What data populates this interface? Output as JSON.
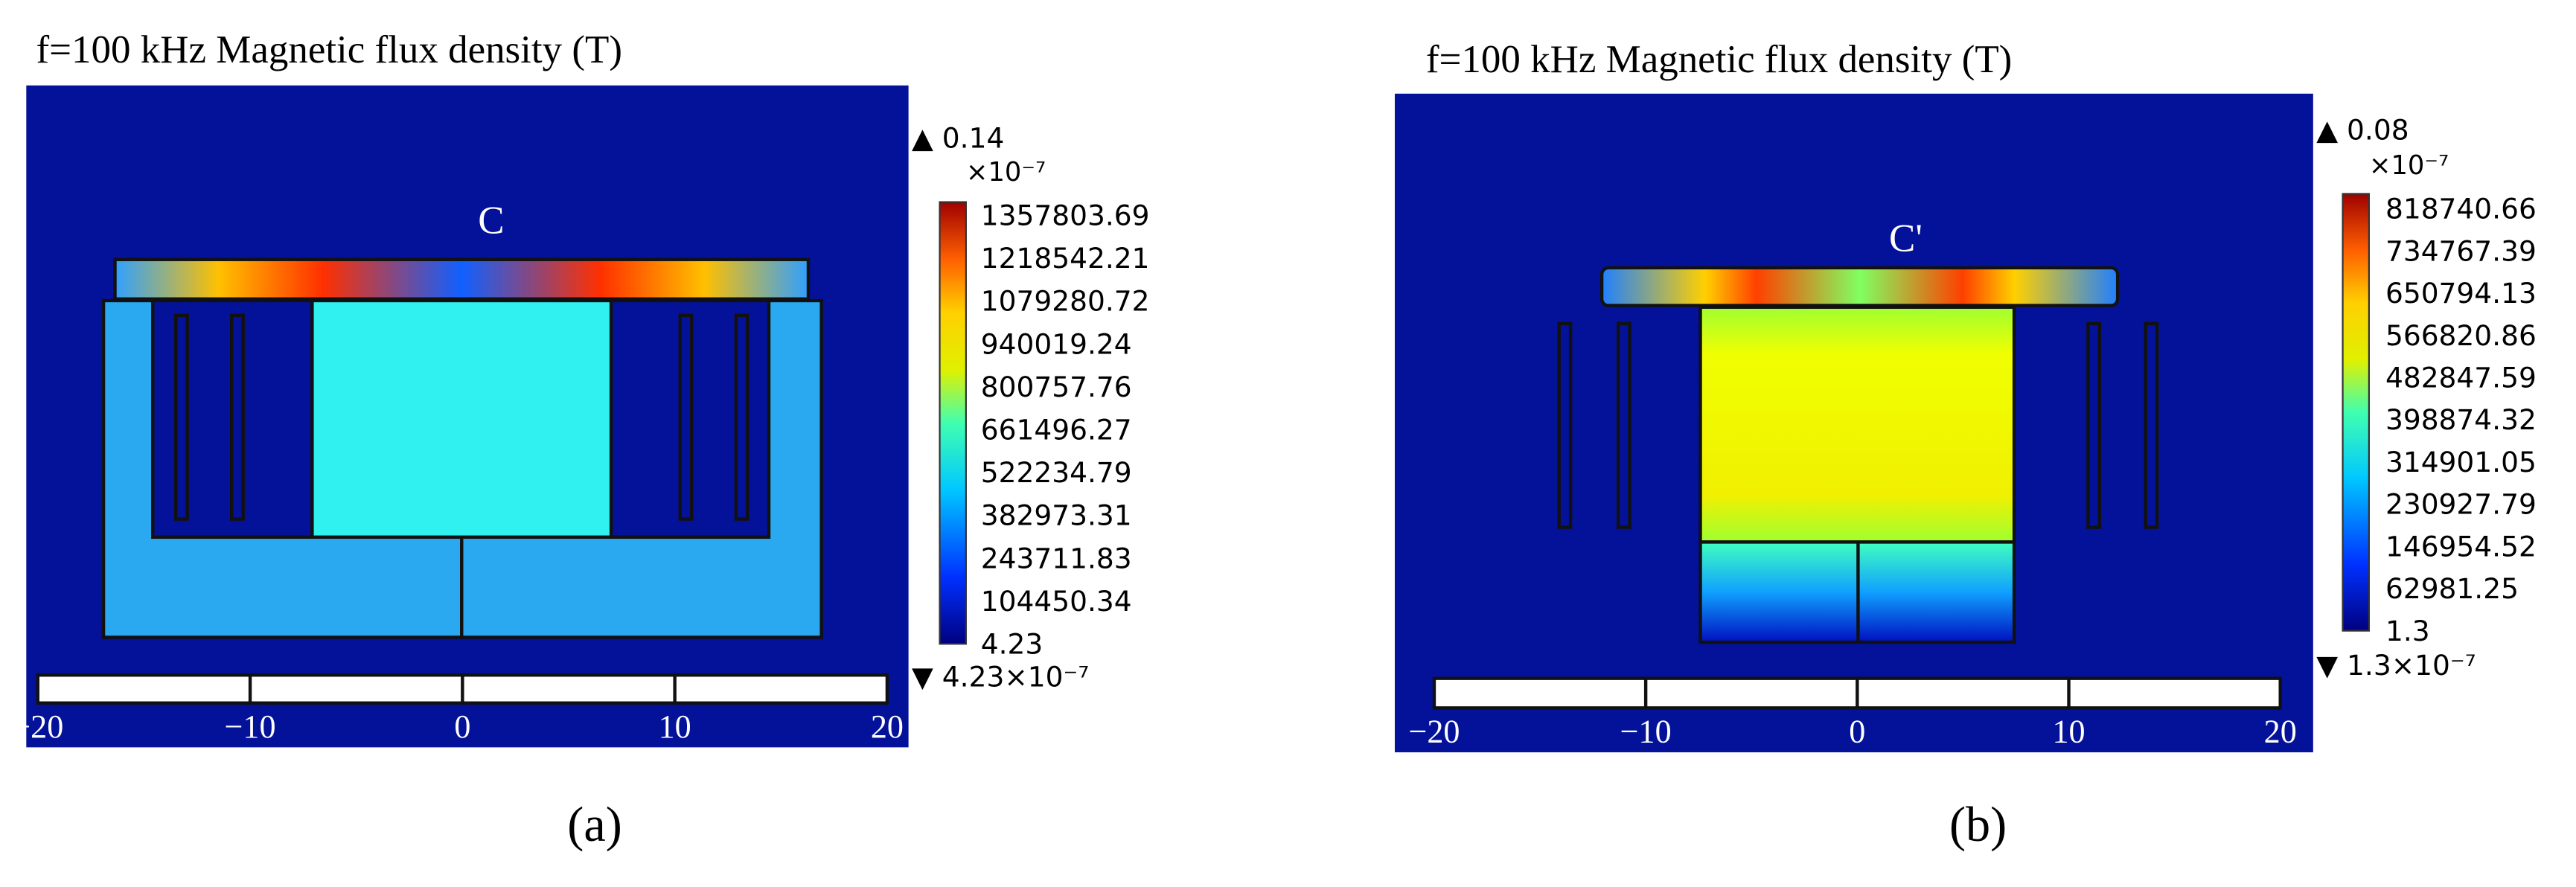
{
  "panels": [
    {
      "title": "f=100 kHz  Magnetic flux density (T)",
      "marker": "C",
      "colorbar": {
        "max": "▲ 0.14",
        "exponent": "×10⁻⁷",
        "ticks": [
          "1357803.69",
          "1218542.21",
          "1079280.72",
          "940019.24",
          "800757.76",
          "661496.27",
          "522234.79",
          "382973.31",
          "243711.83",
          "104450.34",
          "4.23"
        ],
        "min": "▼ 4.23×10⁻⁷"
      },
      "scale": [
        "−20",
        "−10",
        "0",
        "10",
        "20"
      ],
      "caption": "(a)"
    },
    {
      "title": "f=100 kHz  Magnetic flux density (T)",
      "marker": "C'",
      "colorbar": {
        "max": "▲ 0.08",
        "exponent": "×10⁻⁷",
        "ticks": [
          "818740.66",
          "734767.39",
          "650794.13",
          "566820.86",
          "482847.59",
          "398874.32",
          "314901.05",
          "230927.79",
          "146954.52",
          "62981.25",
          "1.3"
        ],
        "min": "▼ 1.3×10⁻⁷"
      },
      "scale": [
        "−20",
        "−10",
        "0",
        "10",
        "20"
      ],
      "caption": "(b)"
    }
  ]
}
